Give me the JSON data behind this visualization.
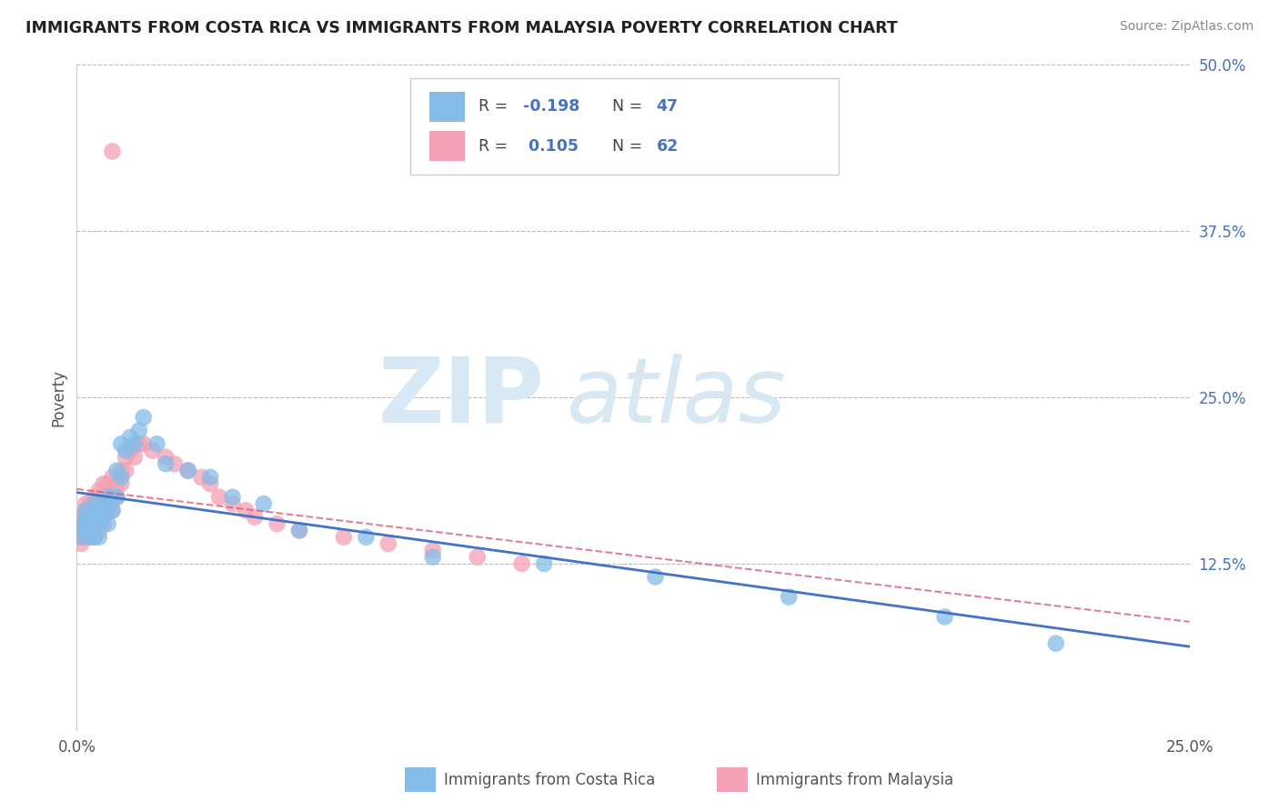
{
  "title": "IMMIGRANTS FROM COSTA RICA VS IMMIGRANTS FROM MALAYSIA POVERTY CORRELATION CHART",
  "source": "Source: ZipAtlas.com",
  "ylabel": "Poverty",
  "xlim": [
    0.0,
    0.25
  ],
  "ylim": [
    0.0,
    0.5
  ],
  "color_costa_rica": "#85BCE8",
  "color_malaysia": "#F4A0B5",
  "color_trendline_costa_rica": "#4472C4",
  "color_trendline_malaysia": "#D9607A",
  "background_color": "#FFFFFF",
  "cr_x": [
    0.001,
    0.001,
    0.002,
    0.002,
    0.002,
    0.003,
    0.003,
    0.003,
    0.003,
    0.004,
    0.004,
    0.004,
    0.004,
    0.005,
    0.005,
    0.005,
    0.005,
    0.006,
    0.006,
    0.007,
    0.007,
    0.007,
    0.008,
    0.008,
    0.009,
    0.009,
    0.01,
    0.01,
    0.011,
    0.012,
    0.013,
    0.014,
    0.015,
    0.018,
    0.02,
    0.025,
    0.03,
    0.035,
    0.042,
    0.05,
    0.065,
    0.08,
    0.105,
    0.13,
    0.16,
    0.195,
    0.22
  ],
  "cr_y": [
    0.155,
    0.145,
    0.16,
    0.15,
    0.165,
    0.155,
    0.145,
    0.16,
    0.15,
    0.165,
    0.155,
    0.145,
    0.17,
    0.155,
    0.165,
    0.145,
    0.16,
    0.17,
    0.16,
    0.175,
    0.165,
    0.155,
    0.165,
    0.175,
    0.175,
    0.195,
    0.19,
    0.215,
    0.21,
    0.22,
    0.215,
    0.225,
    0.235,
    0.215,
    0.2,
    0.195,
    0.19,
    0.175,
    0.17,
    0.15,
    0.145,
    0.13,
    0.125,
    0.115,
    0.1,
    0.085,
    0.065
  ],
  "mal_x": [
    0.001,
    0.001,
    0.001,
    0.001,
    0.002,
    0.002,
    0.002,
    0.002,
    0.002,
    0.003,
    0.003,
    0.003,
    0.003,
    0.003,
    0.004,
    0.004,
    0.004,
    0.004,
    0.004,
    0.005,
    0.005,
    0.005,
    0.005,
    0.005,
    0.006,
    0.006,
    0.006,
    0.006,
    0.007,
    0.007,
    0.007,
    0.008,
    0.008,
    0.008,
    0.009,
    0.009,
    0.01,
    0.01,
    0.011,
    0.011,
    0.012,
    0.013,
    0.014,
    0.015,
    0.017,
    0.02,
    0.022,
    0.025,
    0.028,
    0.03,
    0.032,
    0.035,
    0.038,
    0.04,
    0.045,
    0.05,
    0.06,
    0.07,
    0.08,
    0.09,
    0.1,
    0.008
  ],
  "mal_y": [
    0.145,
    0.155,
    0.16,
    0.14,
    0.155,
    0.165,
    0.145,
    0.17,
    0.16,
    0.165,
    0.155,
    0.145,
    0.17,
    0.16,
    0.165,
    0.155,
    0.145,
    0.175,
    0.165,
    0.17,
    0.16,
    0.15,
    0.18,
    0.165,
    0.175,
    0.165,
    0.155,
    0.185,
    0.175,
    0.165,
    0.185,
    0.175,
    0.165,
    0.19,
    0.175,
    0.185,
    0.195,
    0.185,
    0.195,
    0.205,
    0.21,
    0.205,
    0.215,
    0.215,
    0.21,
    0.205,
    0.2,
    0.195,
    0.19,
    0.185,
    0.175,
    0.17,
    0.165,
    0.16,
    0.155,
    0.15,
    0.145,
    0.14,
    0.135,
    0.13,
    0.125,
    0.435
  ]
}
